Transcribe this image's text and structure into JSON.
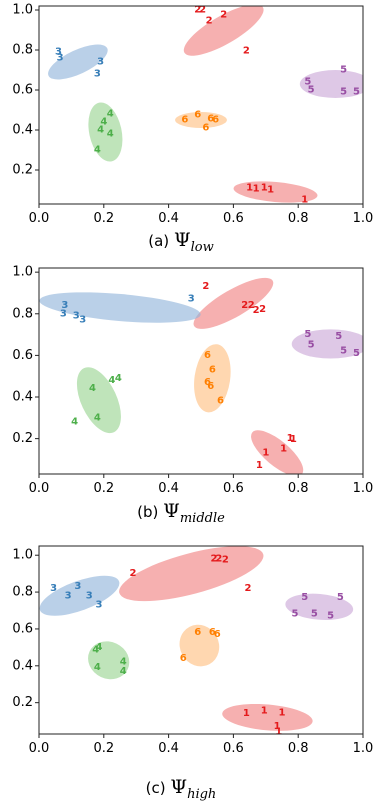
{
  "colors": {
    "1": "#e41a1c",
    "2": "#e41a1c",
    "3": "#377eb8",
    "4": "#4daf4a",
    "5": "#984ea3",
    "6": "#ff7f00"
  },
  "ellipse_colors": {
    "1": "#f08080",
    "2": "#f08080",
    "3": "#8fb3da",
    "4": "#97d38f",
    "5": "#c9a6d6",
    "6": "#ffbf80"
  },
  "chart_data": [
    {
      "type": "scatter",
      "caption": {
        "label": "(a)",
        "symbol": "Ψ",
        "subscript": "low"
      },
      "xlim": [
        0.0,
        1.0
      ],
      "ylim": [
        0.03,
        1.02
      ],
      "xticks": [
        "0.0",
        "0.2",
        "0.4",
        "0.6",
        "0.8",
        "1.0"
      ],
      "yticks": [
        "0.2",
        "0.4",
        "0.6",
        "0.8",
        "1.0"
      ],
      "xtick_values": [
        0.0,
        0.2,
        0.4,
        0.6,
        0.8,
        1.0
      ],
      "ytick_values": [
        0.2,
        0.4,
        0.6,
        0.8,
        1.0
      ],
      "points": [
        {
          "label": "1",
          "x": 0.65,
          "y": 0.11
        },
        {
          "label": "1",
          "x": 0.67,
          "y": 0.105
        },
        {
          "label": "1",
          "x": 0.695,
          "y": 0.11
        },
        {
          "label": "1",
          "x": 0.715,
          "y": 0.1
        },
        {
          "label": "1",
          "x": 0.82,
          "y": 0.05
        },
        {
          "label": "2",
          "x": 0.49,
          "y": 1.0
        },
        {
          "label": "2",
          "x": 0.505,
          "y": 1.0
        },
        {
          "label": "2",
          "x": 0.525,
          "y": 0.945
        },
        {
          "label": "2",
          "x": 0.57,
          "y": 0.975
        },
        {
          "label": "2",
          "x": 0.64,
          "y": 0.795
        },
        {
          "label": "3",
          "x": 0.06,
          "y": 0.79
        },
        {
          "label": "3",
          "x": 0.065,
          "y": 0.76
        },
        {
          "label": "3",
          "x": 0.19,
          "y": 0.74
        },
        {
          "label": "3",
          "x": 0.18,
          "y": 0.68
        },
        {
          "label": "4",
          "x": 0.22,
          "y": 0.48
        },
        {
          "label": "4",
          "x": 0.2,
          "y": 0.44
        },
        {
          "label": "4",
          "x": 0.19,
          "y": 0.4
        },
        {
          "label": "4",
          "x": 0.22,
          "y": 0.38
        },
        {
          "label": "4",
          "x": 0.18,
          "y": 0.3
        },
        {
          "label": "5",
          "x": 0.94,
          "y": 0.7
        },
        {
          "label": "5",
          "x": 0.83,
          "y": 0.64
        },
        {
          "label": "5",
          "x": 0.84,
          "y": 0.6
        },
        {
          "label": "5",
          "x": 0.94,
          "y": 0.59
        },
        {
          "label": "5",
          "x": 0.98,
          "y": 0.59
        },
        {
          "label": "6",
          "x": 0.45,
          "y": 0.45
        },
        {
          "label": "6",
          "x": 0.49,
          "y": 0.475
        },
        {
          "label": "6",
          "x": 0.515,
          "y": 0.41
        },
        {
          "label": "6",
          "x": 0.53,
          "y": 0.455
        },
        {
          "label": "6",
          "x": 0.545,
          "y": 0.45
        }
      ],
      "clusters": [
        {
          "label": "1",
          "cx": 0.73,
          "cy": 0.09,
          "rx": 0.13,
          "ry": 0.05,
          "angle": -5
        },
        {
          "label": "2",
          "cx": 0.57,
          "cy": 0.9,
          "rx": 0.14,
          "ry": 0.07,
          "angle": 30
        },
        {
          "label": "3",
          "cx": 0.12,
          "cy": 0.74,
          "rx": 0.1,
          "ry": 0.06,
          "angle": 25
        },
        {
          "label": "4",
          "cx": 0.205,
          "cy": 0.39,
          "rx": 0.05,
          "ry": 0.15,
          "angle": 12
        },
        {
          "label": "5",
          "cx": 0.915,
          "cy": 0.63,
          "rx": 0.11,
          "ry": 0.07,
          "angle": 0
        },
        {
          "label": "6",
          "cx": 0.5,
          "cy": 0.45,
          "rx": 0.08,
          "ry": 0.04,
          "angle": 0
        }
      ]
    },
    {
      "type": "scatter",
      "caption": {
        "label": "(b)",
        "symbol": "Ψ",
        "subscript": "middle"
      },
      "xlim": [
        0.0,
        1.0
      ],
      "ylim": [
        0.03,
        1.02
      ],
      "xticks": [
        "0.0",
        "0.2",
        "0.4",
        "0.6",
        "0.8",
        "1.0"
      ],
      "yticks": [
        "0.2",
        "0.4",
        "0.6",
        "0.8",
        "1.0"
      ],
      "xtick_values": [
        0.0,
        0.2,
        0.4,
        0.6,
        0.8,
        1.0
      ],
      "ytick_values": [
        0.2,
        0.4,
        0.6,
        0.8,
        1.0
      ],
      "points": [
        {
          "label": "1",
          "x": 0.775,
          "y": 0.2
        },
        {
          "label": "1",
          "x": 0.785,
          "y": 0.195
        },
        {
          "label": "1",
          "x": 0.755,
          "y": 0.15
        },
        {
          "label": "1",
          "x": 0.7,
          "y": 0.13
        },
        {
          "label": "1",
          "x": 0.68,
          "y": 0.07
        },
        {
          "label": "2",
          "x": 0.515,
          "y": 0.93
        },
        {
          "label": "2",
          "x": 0.635,
          "y": 0.84
        },
        {
          "label": "2",
          "x": 0.655,
          "y": 0.84
        },
        {
          "label": "2",
          "x": 0.67,
          "y": 0.815
        },
        {
          "label": "2",
          "x": 0.69,
          "y": 0.82
        },
        {
          "label": "3",
          "x": 0.08,
          "y": 0.84
        },
        {
          "label": "3",
          "x": 0.075,
          "y": 0.8
        },
        {
          "label": "3",
          "x": 0.115,
          "y": 0.79
        },
        {
          "label": "3",
          "x": 0.135,
          "y": 0.77
        },
        {
          "label": "3",
          "x": 0.47,
          "y": 0.87
        },
        {
          "label": "4",
          "x": 0.245,
          "y": 0.49
        },
        {
          "label": "4",
          "x": 0.225,
          "y": 0.48
        },
        {
          "label": "4",
          "x": 0.165,
          "y": 0.44
        },
        {
          "label": "4",
          "x": 0.18,
          "y": 0.3
        },
        {
          "label": "4",
          "x": 0.11,
          "y": 0.28
        },
        {
          "label": "5",
          "x": 0.83,
          "y": 0.7
        },
        {
          "label": "5",
          "x": 0.84,
          "y": 0.65
        },
        {
          "label": "5",
          "x": 0.925,
          "y": 0.69
        },
        {
          "label": "5",
          "x": 0.94,
          "y": 0.62
        },
        {
          "label": "5",
          "x": 0.98,
          "y": 0.61
        },
        {
          "label": "6",
          "x": 0.52,
          "y": 0.6
        },
        {
          "label": "6",
          "x": 0.535,
          "y": 0.53
        },
        {
          "label": "6",
          "x": 0.52,
          "y": 0.47
        },
        {
          "label": "6",
          "x": 0.53,
          "y": 0.45
        },
        {
          "label": "6",
          "x": 0.56,
          "y": 0.38
        }
      ],
      "clusters": [
        {
          "label": "1",
          "cx": 0.735,
          "cy": 0.13,
          "rx": 0.1,
          "ry": 0.06,
          "angle": -40
        },
        {
          "label": "2",
          "cx": 0.6,
          "cy": 0.85,
          "rx": 0.14,
          "ry": 0.065,
          "angle": 30
        },
        {
          "label": "3",
          "cx": 0.25,
          "cy": 0.83,
          "rx": 0.25,
          "ry": 0.065,
          "angle": -5
        },
        {
          "label": "4",
          "cx": 0.185,
          "cy": 0.385,
          "rx": 0.055,
          "ry": 0.17,
          "angle": 25
        },
        {
          "label": "5",
          "cx": 0.9,
          "cy": 0.655,
          "rx": 0.12,
          "ry": 0.07,
          "angle": 0
        },
        {
          "label": "6",
          "cx": 0.535,
          "cy": 0.49,
          "rx": 0.055,
          "ry": 0.165,
          "angle": -8
        }
      ]
    },
    {
      "type": "scatter",
      "caption": {
        "label": "(c)",
        "symbol": "Ψ",
        "subscript": "high"
      },
      "xlim": [
        0.0,
        1.0
      ],
      "ylim": [
        0.03,
        1.05
      ],
      "xticks": [
        "0.0",
        "0.2",
        "0.4",
        "0.6",
        "0.8",
        "1.0"
      ],
      "yticks": [
        "0.2",
        "0.4",
        "0.6",
        "0.8",
        "1.0"
      ],
      "xtick_values": [
        0.0,
        0.2,
        0.4,
        0.6,
        0.8,
        1.0
      ],
      "ytick_values": [
        0.2,
        0.4,
        0.6,
        0.8,
        1.0
      ],
      "points": [
        {
          "label": "1",
          "x": 0.64,
          "y": 0.14
        },
        {
          "label": "1",
          "x": 0.695,
          "y": 0.155
        },
        {
          "label": "1",
          "x": 0.75,
          "y": 0.145
        },
        {
          "label": "1",
          "x": 0.735,
          "y": 0.07
        },
        {
          "label": "1",
          "x": 0.74,
          "y": 0.04
        },
        {
          "label": "2",
          "x": 0.29,
          "y": 0.9
        },
        {
          "label": "2",
          "x": 0.54,
          "y": 0.98
        },
        {
          "label": "2",
          "x": 0.555,
          "y": 0.98
        },
        {
          "label": "2",
          "x": 0.575,
          "y": 0.975
        },
        {
          "label": "2",
          "x": 0.645,
          "y": 0.82
        },
        {
          "label": "3",
          "x": 0.045,
          "y": 0.82
        },
        {
          "label": "3",
          "x": 0.12,
          "y": 0.83
        },
        {
          "label": "3",
          "x": 0.09,
          "y": 0.78
        },
        {
          "label": "3",
          "x": 0.155,
          "y": 0.78
        },
        {
          "label": "3",
          "x": 0.185,
          "y": 0.73
        },
        {
          "label": "4",
          "x": 0.185,
          "y": 0.5
        },
        {
          "label": "4",
          "x": 0.175,
          "y": 0.485
        },
        {
          "label": "4",
          "x": 0.26,
          "y": 0.42
        },
        {
          "label": "4",
          "x": 0.18,
          "y": 0.39
        },
        {
          "label": "4",
          "x": 0.26,
          "y": 0.37
        },
        {
          "label": "5",
          "x": 0.82,
          "y": 0.77
        },
        {
          "label": "5",
          "x": 0.93,
          "y": 0.77
        },
        {
          "label": "5",
          "x": 0.79,
          "y": 0.68
        },
        {
          "label": "5",
          "x": 0.85,
          "y": 0.68
        },
        {
          "label": "5",
          "x": 0.9,
          "y": 0.67
        },
        {
          "label": "6",
          "x": 0.49,
          "y": 0.58
        },
        {
          "label": "6",
          "x": 0.535,
          "y": 0.58
        },
        {
          "label": "6",
          "x": 0.55,
          "y": 0.57
        },
        {
          "label": "6",
          "x": 0.445,
          "y": 0.44
        }
      ],
      "clusters": [
        {
          "label": "1",
          "cx": 0.705,
          "cy": 0.12,
          "rx": 0.14,
          "ry": 0.07,
          "angle": -5
        },
        {
          "label": "2",
          "cx": 0.47,
          "cy": 0.9,
          "rx": 0.23,
          "ry": 0.11,
          "angle": 15
        },
        {
          "label": "3",
          "cx": 0.125,
          "cy": 0.78,
          "rx": 0.13,
          "ry": 0.08,
          "angle": 20
        },
        {
          "label": "4",
          "cx": 0.215,
          "cy": 0.43,
          "rx": 0.065,
          "ry": 0.1,
          "angle": -25
        },
        {
          "label": "5",
          "cx": 0.865,
          "cy": 0.72,
          "rx": 0.105,
          "ry": 0.07,
          "angle": -5
        },
        {
          "label": "6",
          "cx": 0.495,
          "cy": 0.51,
          "rx": 0.06,
          "ry": 0.115,
          "angle": 28
        }
      ]
    }
  ]
}
